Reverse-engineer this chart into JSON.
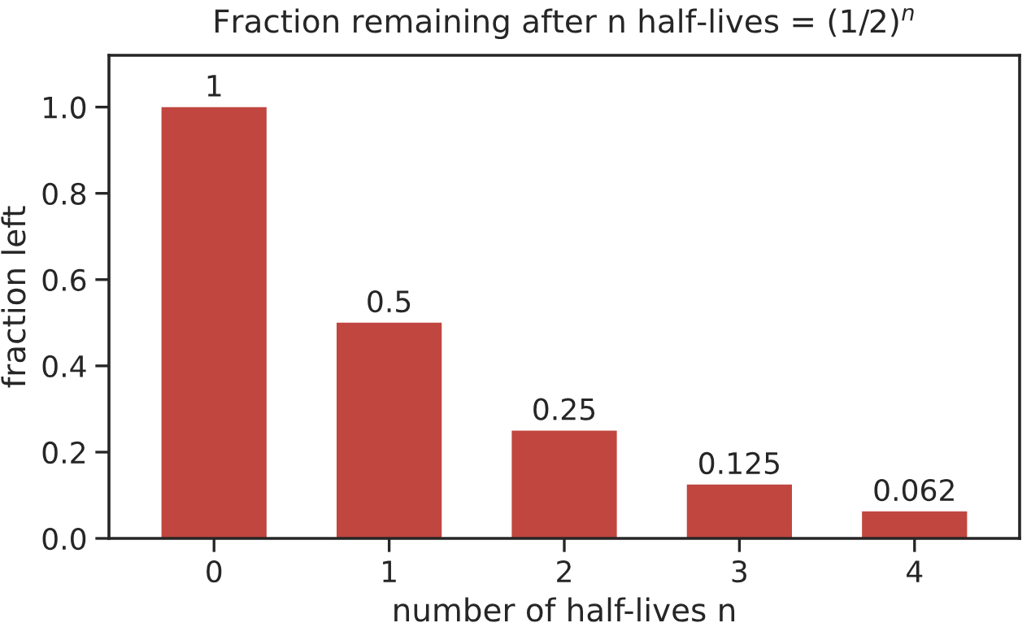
{
  "chart_data": {
    "type": "bar",
    "title": "Fraction remaining after n half-lives = (1/2)$^{n}$",
    "xlabel": "number of half-lives n",
    "ylabel": "fraction left",
    "categories": [
      "0",
      "1",
      "2",
      "3",
      "4"
    ],
    "values": [
      1,
      0.5,
      0.25,
      0.125,
      0.0625
    ],
    "value_labels": [
      "1",
      "0.5",
      "0.25",
      "0.125",
      "0.062"
    ],
    "color": "#c0463f",
    "ylim": [
      0,
      1.12
    ],
    "yticks": [
      {
        "value": 0,
        "label": "0.0"
      },
      {
        "value": 0.2,
        "label": "0.2"
      },
      {
        "value": 0.4,
        "label": "0.4"
      },
      {
        "value": 0.6,
        "label": "0.6"
      },
      {
        "value": 0.8,
        "label": "0.8"
      },
      {
        "value": 1.0,
        "label": "1.0"
      }
    ],
    "grid": false,
    "legend": false
  }
}
